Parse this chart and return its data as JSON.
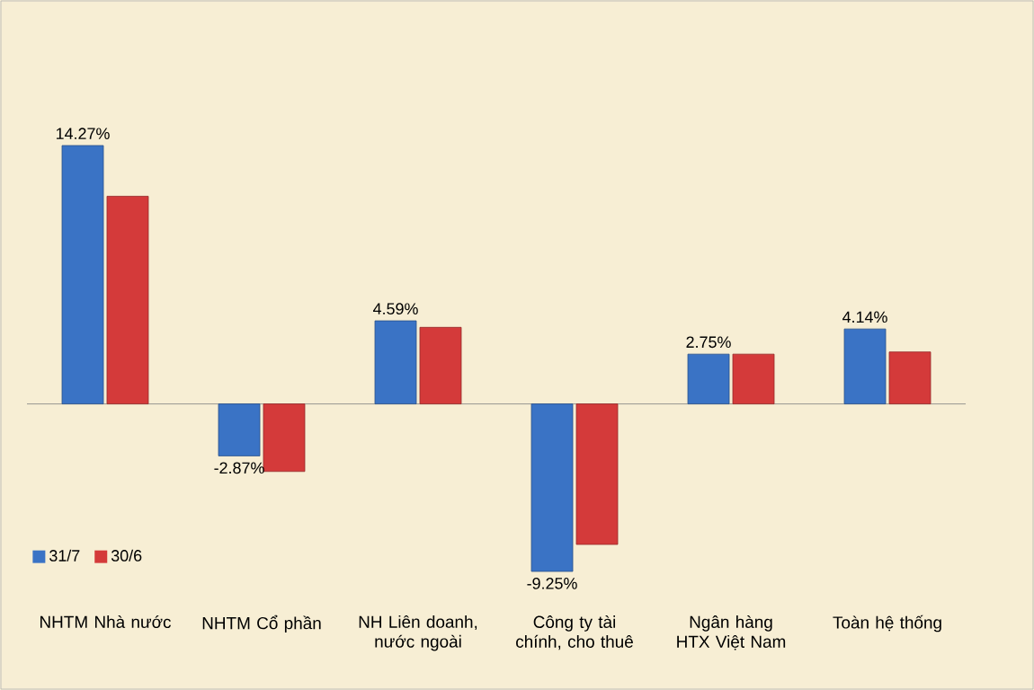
{
  "chart_data": {
    "type": "bar",
    "categories": [
      "NHTM Nhà nước",
      "NHTM Cổ phần",
      "NH Liên doanh, nước ngoài",
      "Công ty tài chính, cho thuê",
      "Ngân hàng HTX Việt Nam",
      "Toàn hệ thống"
    ],
    "series": [
      {
        "name": "31/7",
        "color": "#3a73c5",
        "values": [
          14.27,
          -2.87,
          4.59,
          -9.25,
          2.75,
          4.14
        ],
        "value_labels": [
          "14.27%",
          "-2.87%",
          "4.59%",
          "-9.25%",
          "2.75%",
          "4.14%"
        ]
      },
      {
        "name": "30/6",
        "color": "#d43a3a",
        "values": [
          11.47,
          -3.73,
          4.23,
          -7.76,
          2.75,
          2.87
        ]
      }
    ],
    "tick_labels": "x",
    "legend": "bottom left",
    "grid": false
  }
}
